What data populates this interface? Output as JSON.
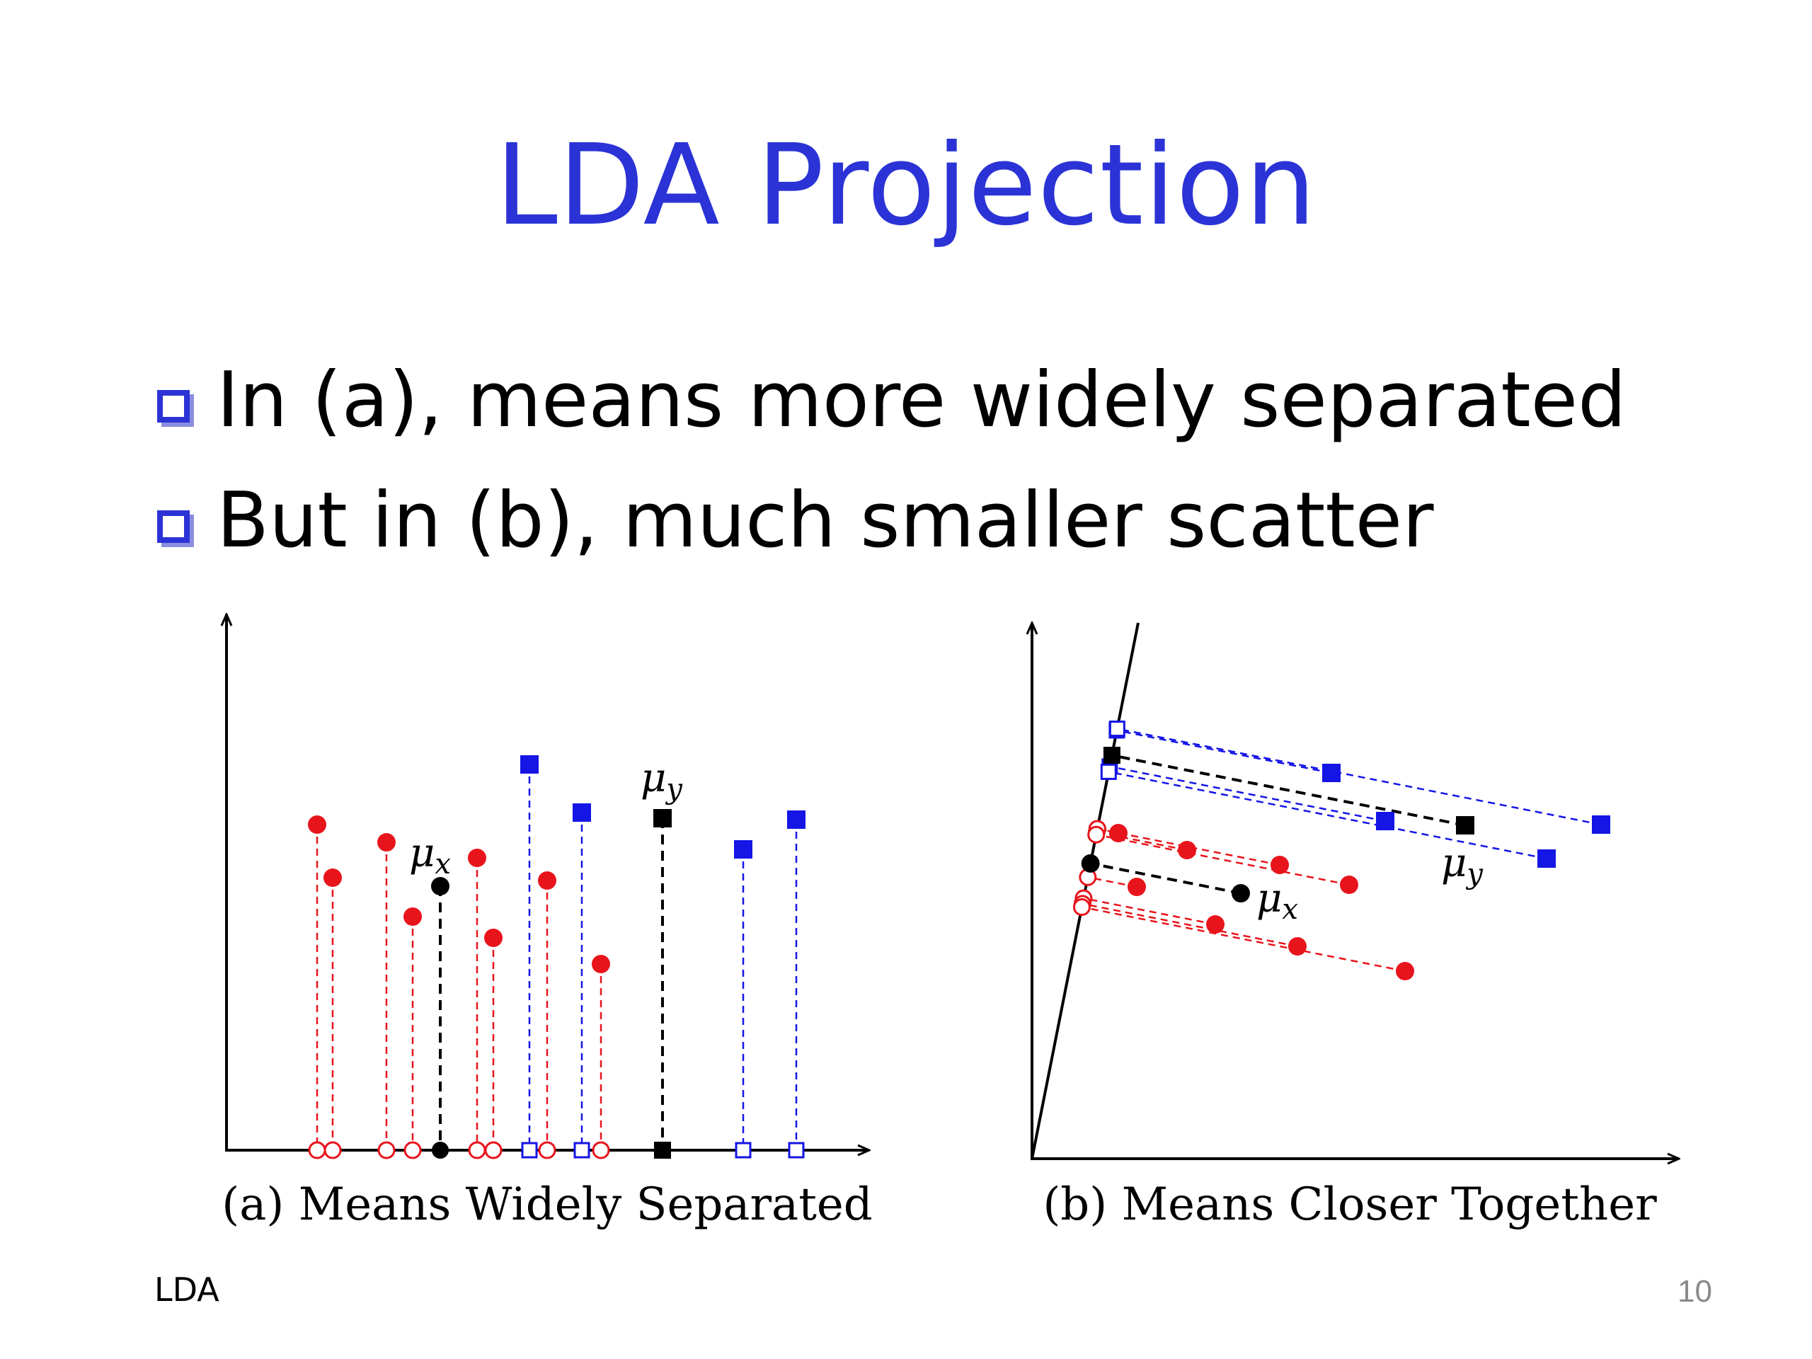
{
  "title": "LDA Projection",
  "bullets": [
    "In (a), means more widely separated",
    "But in (b), much smaller scatter"
  ],
  "figure_a": {
    "caption": "(a) Means Widely Separated",
    "mu_x": "μ",
    "mu_x_sub": "x",
    "mu_y": "μ",
    "mu_y_sub": "y"
  },
  "figure_b": {
    "caption": "(b) Means Closer Together",
    "mu_x": "μ",
    "mu_x_sub": "x",
    "mu_y": "μ",
    "mu_y_sub": "y"
  },
  "footer": {
    "left": "LDA",
    "page": "10"
  },
  "colors": {
    "title": "#2b33d6",
    "class_x": "#e8141c",
    "class_y": "#1515e6",
    "mean": "#000000"
  }
}
